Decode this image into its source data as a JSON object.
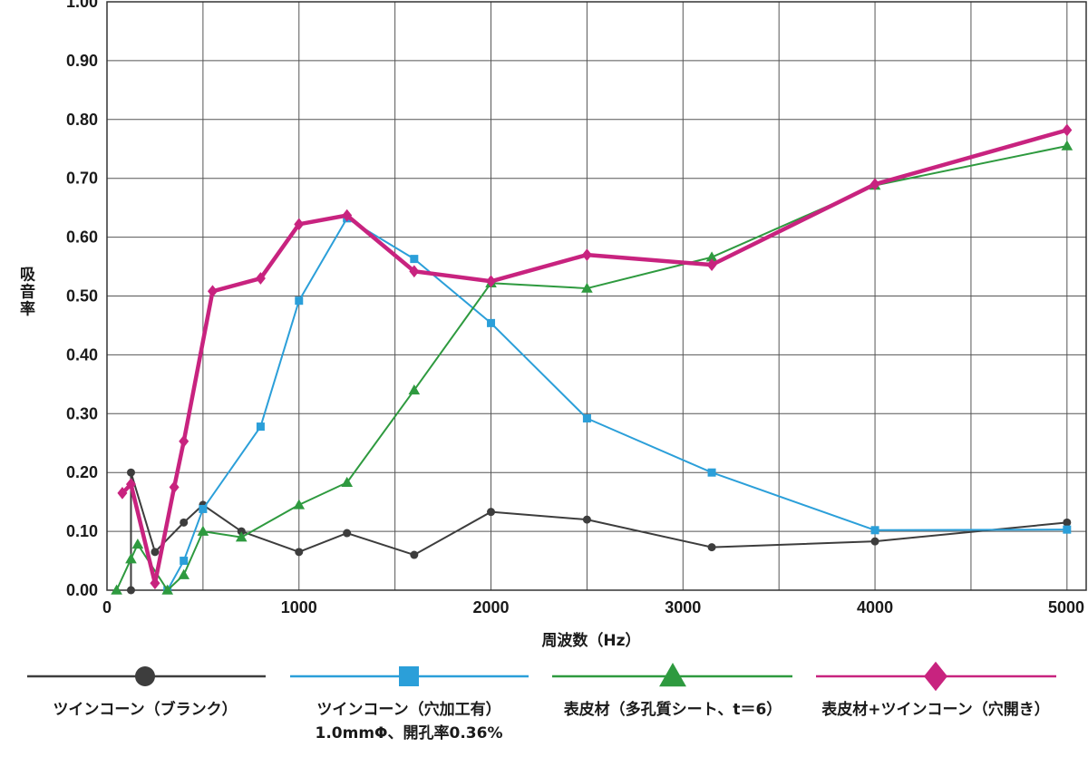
{
  "chart_data": {
    "type": "line",
    "xlabel": "周波数（Hz）",
    "ylabel": "吸音率",
    "xlim": [
      0,
      5100
    ],
    "ylim": [
      0,
      1.0
    ],
    "x_ticks": [
      "0",
      "1000",
      "2000",
      "3000",
      "4000",
      "5000"
    ],
    "y_ticks": [
      "0.00",
      "0.10",
      "0.20",
      "0.30",
      "0.40",
      "0.50",
      "0.60",
      "0.70",
      "0.80",
      "0.90",
      "1.00"
    ],
    "grid": true,
    "legend_position": "bottom",
    "series": [
      {
        "name": "ツインコーン（ブランク）",
        "name_line2": "",
        "color": "#3d3d3d",
        "marker": "circle",
        "stroke_width": 2,
        "points": [
          [
            125,
            0.0
          ],
          [
            125,
            0.2
          ],
          [
            250,
            0.065
          ],
          [
            400,
            0.115
          ],
          [
            500,
            0.145
          ],
          [
            700,
            0.1
          ],
          [
            1000,
            0.065
          ],
          [
            1250,
            0.097
          ],
          [
            1600,
            0.06
          ],
          [
            2000,
            0.133
          ],
          [
            2500,
            0.12
          ],
          [
            3150,
            0.073
          ],
          [
            4000,
            0.083
          ],
          [
            5000,
            0.115
          ]
        ]
      },
      {
        "name": "ツインコーン（穴加工有）",
        "name_line2": "1.0mmΦ、開孔率0.36%",
        "color": "#2b9fd9",
        "marker": "square",
        "stroke_width": 2,
        "points": [
          [
            315,
            0.0
          ],
          [
            400,
            0.05
          ],
          [
            500,
            0.138
          ],
          [
            800,
            0.278
          ],
          [
            1000,
            0.492
          ],
          [
            1250,
            0.632
          ],
          [
            1600,
            0.563
          ],
          [
            2000,
            0.454
          ],
          [
            2500,
            0.292
          ],
          [
            3150,
            0.2
          ],
          [
            4000,
            0.102
          ],
          [
            5000,
            0.103
          ]
        ]
      },
      {
        "name": "表皮材（多孔質シート、t＝6）",
        "name_line2": "",
        "color": "#2e9a3f",
        "marker": "triangle",
        "stroke_width": 2,
        "points": [
          [
            50,
            0.0
          ],
          [
            125,
            0.053
          ],
          [
            160,
            0.078
          ],
          [
            315,
            0.0
          ],
          [
            400,
            0.026
          ],
          [
            500,
            0.1
          ],
          [
            700,
            0.09
          ],
          [
            1000,
            0.145
          ],
          [
            1250,
            0.183
          ],
          [
            1600,
            0.34
          ],
          [
            2000,
            0.522
          ],
          [
            2500,
            0.513
          ],
          [
            3150,
            0.566
          ],
          [
            4000,
            0.688
          ],
          [
            5000,
            0.755
          ]
        ]
      },
      {
        "name": "表皮材+ツインコーン（穴開き）",
        "name_line2": "",
        "color": "#c8237f",
        "marker": "diamond",
        "stroke_width": 4.5,
        "points": [
          [
            80,
            0.165
          ],
          [
            125,
            0.18
          ],
          [
            250,
            0.012
          ],
          [
            350,
            0.175
          ],
          [
            400,
            0.253
          ],
          [
            550,
            0.508
          ],
          [
            800,
            0.53
          ],
          [
            1000,
            0.622
          ],
          [
            1250,
            0.637
          ],
          [
            1600,
            0.542
          ],
          [
            2000,
            0.525
          ],
          [
            2500,
            0.57
          ],
          [
            3150,
            0.553
          ],
          [
            4000,
            0.69
          ],
          [
            5000,
            0.782
          ]
        ]
      }
    ]
  }
}
